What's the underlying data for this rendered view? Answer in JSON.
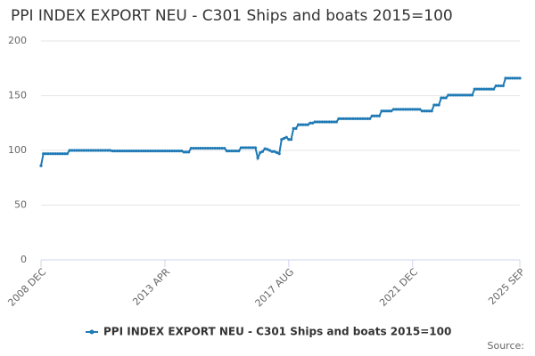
{
  "chart_data": {
    "type": "line",
    "title": "PPI INDEX EXPORT NEU - C301 Ships and boats 2015=100",
    "source": "Source:",
    "categories": [
      "2008 DEC",
      null,
      null,
      null,
      null,
      null,
      null,
      null,
      null,
      null,
      null,
      null,
      null,
      null,
      null,
      null,
      null,
      null,
      null,
      null,
      null,
      null,
      null,
      null,
      null,
      null,
      null,
      null,
      null,
      null,
      null,
      null,
      null,
      null,
      null,
      null,
      null,
      null,
      null,
      null,
      null,
      null,
      null,
      null,
      null,
      null,
      null,
      null,
      null,
      null,
      null,
      null,
      "2013 APR",
      null,
      null,
      null,
      null,
      null,
      null,
      null,
      null,
      null,
      null,
      null,
      null,
      null,
      null,
      null,
      null,
      null,
      null,
      null,
      null,
      null,
      null,
      null,
      null,
      null,
      null,
      null,
      null,
      null,
      null,
      null,
      null,
      null,
      null,
      null,
      null,
      null,
      null,
      null,
      null,
      null,
      null,
      null,
      null,
      null,
      null,
      null,
      null,
      null,
      null,
      null,
      "2017 AUG",
      null,
      null,
      null,
      null,
      null,
      null,
      null,
      null,
      null,
      null,
      null,
      null,
      null,
      null,
      null,
      null,
      null,
      null,
      null,
      null,
      null,
      null,
      null,
      null,
      null,
      null,
      null,
      null,
      null,
      null,
      null,
      null,
      null,
      null,
      null,
      null,
      null,
      null,
      null,
      null,
      null,
      null,
      null,
      null,
      null,
      null,
      null,
      null,
      null,
      null,
      null,
      "2021 DEC",
      null,
      null,
      null,
      null,
      null,
      null,
      null,
      null,
      null,
      null,
      null,
      null,
      null,
      null,
      null,
      null,
      null,
      null,
      null,
      null,
      null,
      null,
      null,
      null,
      null,
      null,
      null,
      null,
      null,
      null,
      null,
      null,
      null,
      null,
      null,
      null,
      null,
      null,
      null,
      null,
      null,
      null,
      null,
      null,
      "2025 SEP"
    ],
    "series": [
      {
        "name": "PPI INDEX EXPORT NEU - C301 Ships and boats 2015=100",
        "color": "#1f7ab5",
        "values": [
          86,
          97,
          97,
          97,
          97,
          97,
          97,
          97,
          97,
          97,
          97,
          97,
          100,
          100,
          100,
          100,
          100,
          100,
          100,
          100,
          100,
          100,
          100,
          100,
          100,
          100,
          100,
          100,
          100,
          100,
          99.5,
          99.5,
          99.5,
          99.5,
          99.5,
          99.5,
          99.5,
          99.5,
          99.5,
          99.5,
          99.5,
          99.5,
          99.5,
          99.5,
          99.5,
          99.5,
          99.5,
          99.5,
          99.5,
          99.5,
          99.5,
          99.5,
          99.5,
          99.5,
          99.5,
          99.5,
          99.5,
          99.5,
          99.5,
          99.5,
          98.5,
          98.5,
          98.5,
          102,
          102,
          102,
          102,
          102,
          102,
          102,
          102,
          102,
          102,
          102,
          102,
          102,
          102,
          102,
          99.5,
          99.5,
          99.5,
          99.5,
          99.5,
          99.5,
          102.5,
          102.5,
          102.5,
          102.5,
          102.5,
          102.5,
          102.5,
          93,
          98,
          99,
          101.5,
          101,
          100,
          99,
          99,
          98,
          97,
          110,
          111,
          112,
          110,
          110,
          120,
          120,
          123.5,
          123.5,
          123.5,
          123.5,
          123.5,
          125,
          125,
          126,
          126,
          126,
          126,
          126,
          126,
          126,
          126,
          126,
          126,
          129,
          129,
          129,
          129,
          129,
          129,
          129,
          129,
          129,
          129,
          129,
          129,
          129,
          129,
          131.5,
          131.5,
          131.5,
          131.5,
          136,
          136,
          136,
          136,
          136,
          137.5,
          137.5,
          137.5,
          137.5,
          137.5,
          137.5,
          137.5,
          137.5,
          137.5,
          137.5,
          137.5,
          137.5,
          136,
          136,
          136,
          136,
          136,
          141.5,
          141.5,
          141.5,
          148,
          148,
          148,
          150.5,
          150.5,
          150.5,
          150.5,
          150.5,
          150.5,
          150.5,
          150.5,
          150.5,
          150.5,
          150.5,
          156,
          156,
          156,
          156,
          156,
          156,
          156,
          156,
          156,
          159,
          159,
          159,
          159,
          166,
          166,
          166,
          166,
          166,
          166,
          166
        ]
      }
    ],
    "ylim": [
      0,
      200
    ],
    "yticks": [
      0,
      50,
      100,
      150,
      200
    ],
    "grid": true,
    "legend": "bottom"
  }
}
